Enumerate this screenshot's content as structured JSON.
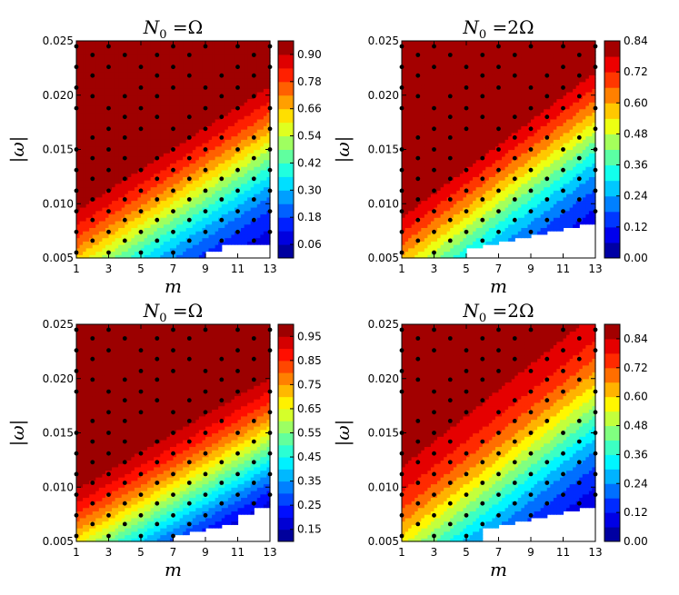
{
  "chart_data": [
    {
      "type": "heatmap",
      "title_base": "N",
      "title_sub": "0",
      "title_rhs": " =Ω",
      "xlabel": "m",
      "ylabel": "|ω|",
      "xlim": [
        1,
        13
      ],
      "ylim": [
        0.005,
        0.025
      ],
      "xticks": [
        "1",
        "3",
        "5",
        "7",
        "9",
        "11",
        "13"
      ],
      "yticks": [
        "0.005",
        "0.010",
        "0.015",
        "0.020",
        "0.025"
      ],
      "colorbar": {
        "ticks": [
          "0.06",
          "0.18",
          "0.30",
          "0.42",
          "0.54",
          "0.66",
          "0.78",
          "0.90"
        ],
        "range": [
          0.0,
          0.96
        ],
        "levels": 16
      },
      "model": {
        "a": 1.05,
        "b": 0.7,
        "slope": 0.0019,
        "fade": 0.0033
      },
      "blank_steps": [
        [
          10,
          0.0057
        ],
        [
          11,
          0.0062
        ],
        [
          12,
          0.0064
        ],
        [
          13,
          0.0064
        ]
      ]
    },
    {
      "type": "heatmap",
      "title_base": "N",
      "title_sub": "0",
      "title_rhs": " =2Ω",
      "xlabel": "m",
      "ylabel": "|ω|",
      "xlim": [
        1,
        13
      ],
      "ylim": [
        0.005,
        0.025
      ],
      "xticks": [
        "1",
        "3",
        "5",
        "7",
        "9",
        "11",
        "13"
      ],
      "yticks": [
        "0.005",
        "0.010",
        "0.015",
        "0.020",
        "0.025"
      ],
      "colorbar": {
        "ticks": [
          "0.00",
          "0.12",
          "0.24",
          "0.36",
          "0.48",
          "0.60",
          "0.72",
          "0.84"
        ],
        "range": [
          0.0,
          0.84
        ],
        "levels": 14
      },
      "model": {
        "a": 0.95,
        "b": 1.2,
        "slope": 0.0022,
        "fade": 0.0035
      },
      "blank_steps": [
        [
          6,
          0.0058
        ],
        [
          7,
          0.0062
        ],
        [
          8,
          0.0065
        ],
        [
          9,
          0.0069
        ],
        [
          10,
          0.0073
        ],
        [
          11,
          0.0075
        ],
        [
          12,
          0.0078
        ],
        [
          13,
          0.008
        ]
      ]
    },
    {
      "type": "heatmap",
      "title_base": "N",
      "title_sub": "0",
      "title_rhs": " =Ω",
      "xlabel": "m",
      "ylabel": "|ω|",
      "xlim": [
        1,
        13
      ],
      "ylim": [
        0.005,
        0.025
      ],
      "xticks": [
        "1",
        "3",
        "5",
        "7",
        "9",
        "11",
        "13"
      ],
      "yticks": [
        "0.005",
        "0.010",
        "0.015",
        "0.020",
        "0.025"
      ],
      "colorbar": {
        "ticks": [
          "0.95",
          "0.85",
          "0.75",
          "0.65",
          "0.55",
          "0.45",
          "0.35",
          "0.25",
          "0.15"
        ],
        "range": [
          0.1,
          1.0
        ],
        "levels": 18
      },
      "model": {
        "a": 1.08,
        "b": 0.6,
        "slope": 0.0017,
        "fade": 0.0032
      },
      "blank_steps": [
        [
          8,
          0.0055
        ],
        [
          9,
          0.0059
        ],
        [
          10,
          0.0062
        ],
        [
          11,
          0.0067
        ],
        [
          12,
          0.0074
        ],
        [
          13,
          0.008
        ]
      ]
    },
    {
      "type": "heatmap",
      "title_base": "N",
      "title_sub": "0",
      "title_rhs": " =2Ω",
      "xlabel": "m",
      "ylabel": "|ω|",
      "xlim": [
        1,
        13
      ],
      "ylim": [
        0.005,
        0.025
      ],
      "xticks": [
        "1",
        "3",
        "5",
        "7",
        "9",
        "11",
        "13"
      ],
      "yticks": [
        "0.005",
        "0.010",
        "0.015",
        "0.020",
        "0.025"
      ],
      "colorbar": {
        "ticks": [
          "0.00",
          "0.12",
          "0.24",
          "0.36",
          "0.48",
          "0.60",
          "0.72",
          "0.84"
        ],
        "range": [
          0.0,
          0.9
        ],
        "levels": 15
      },
      "model": {
        "a": 0.92,
        "b": 1.15,
        "slope": 0.0023,
        "fade": 0.0036
      },
      "blank_steps": [
        [
          7,
          0.0062
        ],
        [
          8,
          0.0066
        ],
        [
          9,
          0.0069
        ],
        [
          10,
          0.0072
        ],
        [
          11,
          0.0076
        ],
        [
          12,
          0.0078
        ],
        [
          13,
          0.008
        ]
      ]
    }
  ]
}
